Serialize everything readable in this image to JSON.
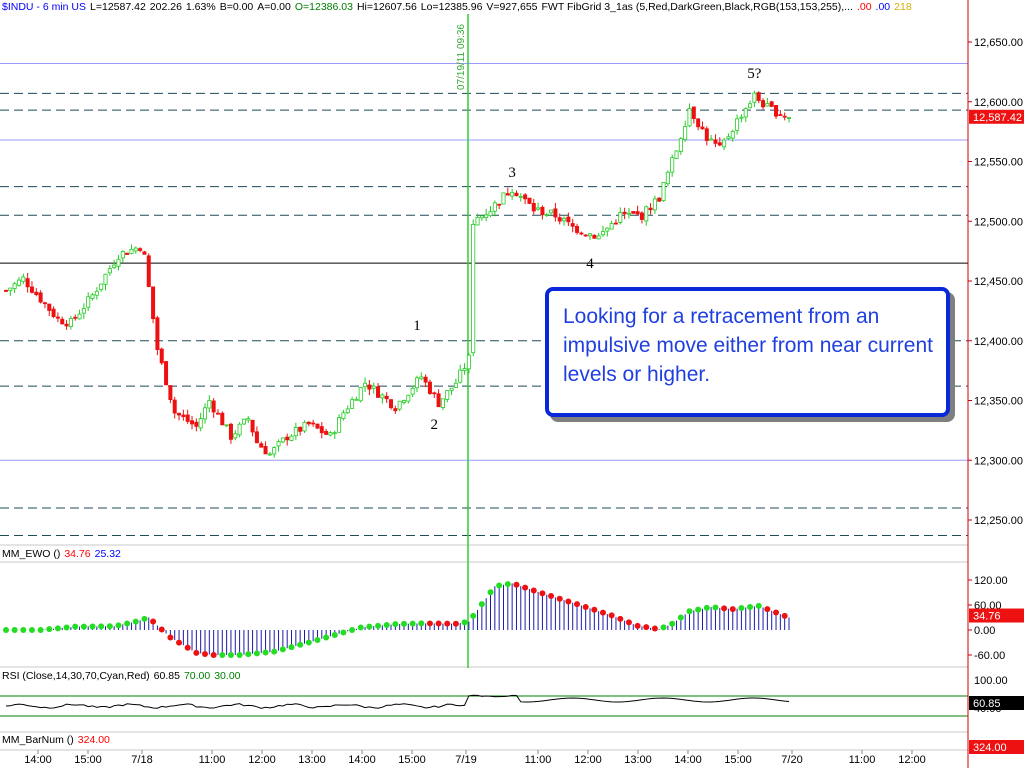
{
  "header": {
    "main": [
      {
        "text": "$INDU - 6 min  US",
        "color": "#0000ff"
      },
      {
        "text": "L=12587.42",
        "color": "#000000"
      },
      {
        "text": "202.26",
        "color": "#000000"
      },
      {
        "text": "1.63%",
        "color": "#000000"
      },
      {
        "text": "B=0.00",
        "color": "#000000"
      },
      {
        "text": "A=0.00",
        "color": "#000000"
      },
      {
        "text": "O=12386.03",
        "color": "#008000"
      },
      {
        "text": "Hi=12607.56",
        "color": "#000000"
      },
      {
        "text": "Lo=12385.96",
        "color": "#000000"
      },
      {
        "text": "V=927,655",
        "color": "#000000"
      },
      {
        "text": "FWT FibGrid 3_1as (5,Red,DarkGreen,Black,RGB(153,153,255),...",
        "color": "#000000"
      },
      {
        "text": ".00",
        "color": "#ff0000"
      },
      {
        "text": ".00",
        "color": "#0000ff"
      },
      {
        "text": "218",
        "color": "#d4b000"
      }
    ],
    "ewo": [
      {
        "text": "MM_EWO ()",
        "color": "#000000"
      },
      {
        "text": "34.76",
        "color": "#ff0000"
      },
      {
        "text": "25.32",
        "color": "#0000ff"
      }
    ],
    "rsi": [
      {
        "text": "RSI (Close,14,30,70,Cyan,Red)",
        "color": "#000000"
      },
      {
        "text": "60.85",
        "color": "#000000"
      },
      {
        "text": "70.00",
        "color": "#008000"
      },
      {
        "text": "30.00",
        "color": "#008000"
      }
    ],
    "bar": [
      {
        "text": "MM_BarNum ()",
        "color": "#000000"
      },
      {
        "text": "324.00",
        "color": "#ff0000"
      }
    ]
  },
  "callout": {
    "text": "Looking for a retracement from an impulsive move either from near current levels or higher."
  },
  "chart_data": {
    "type": "candlestick",
    "title": "$INDU - 6 min US",
    "price_axis": {
      "ticks": [
        "12,650.00",
        "12,600.00",
        "12,550.00",
        "12,500.00",
        "12,450.00",
        "12,400.00",
        "12,350.00",
        "12,300.00",
        "12,250.00"
      ],
      "tick_values": [
        12650,
        12600,
        12550,
        12500,
        12450,
        12400,
        12350,
        12300,
        12250
      ],
      "ylim": [
        12230,
        12665
      ],
      "last_price_label": "12,587.42",
      "last_price": 12587.42
    },
    "time_axis": {
      "labels": [
        "14:00",
        "15:00",
        "7/18",
        "11:00",
        "12:00",
        "13:00",
        "14:00",
        "15:00",
        "7/19",
        "11:00",
        "12:00",
        "13:00",
        "14:00",
        "15:00",
        "7/20",
        "11:00",
        "12:00"
      ]
    },
    "vertical_marker": {
      "label": "07/19/11 09:36",
      "color": "#33cc33"
    },
    "fib_levels": {
      "dashed": [
        12607,
        12593,
        12529,
        12505,
        12400,
        12362,
        12260,
        12237
      ],
      "blue_solid": [
        12632,
        12568,
        12300
      ],
      "black_solid": [
        12465
      ]
    },
    "wave_labels": [
      {
        "text": "1",
        "bar": 95,
        "price": 12409
      },
      {
        "text": "2",
        "bar": 99,
        "price": 12326
      },
      {
        "text": "3",
        "bar": 117,
        "price": 12537
      },
      {
        "text": "4",
        "bar": 135,
        "price": 12461
      },
      {
        "text": "5?",
        "bar": 173,
        "price": 12620
      }
    ],
    "price_path_knots": [
      [
        0,
        12442
      ],
      [
        4,
        12452
      ],
      [
        12,
        12418
      ],
      [
        15,
        12415
      ],
      [
        20,
        12438
      ],
      [
        26,
        12472
      ],
      [
        31,
        12479
      ],
      [
        32,
        12470
      ],
      [
        35,
        12393
      ],
      [
        39,
        12340
      ],
      [
        44,
        12328
      ],
      [
        47,
        12350
      ],
      [
        52,
        12320
      ],
      [
        56,
        12335
      ],
      [
        58,
        12315
      ],
      [
        61,
        12305
      ],
      [
        65,
        12320
      ],
      [
        70,
        12330
      ],
      [
        75,
        12320
      ],
      [
        78,
        12340
      ],
      [
        83,
        12365
      ],
      [
        90,
        12345
      ],
      [
        96,
        12370
      ],
      [
        100,
        12348
      ],
      [
        104,
        12365
      ],
      [
        107,
        12385
      ],
      [
        108,
        12500
      ],
      [
        112,
        12510
      ],
      [
        117,
        12528
      ],
      [
        122,
        12510
      ],
      [
        127,
        12505
      ],
      [
        131,
        12495
      ],
      [
        137,
        12487
      ],
      [
        142,
        12505
      ],
      [
        147,
        12505
      ],
      [
        151,
        12520
      ],
      [
        155,
        12560
      ],
      [
        158,
        12595
      ],
      [
        162,
        12570
      ],
      [
        165,
        12560
      ],
      [
        170,
        12590
      ],
      [
        173,
        12605
      ],
      [
        176,
        12595
      ],
      [
        181,
        12587
      ]
    ],
    "panels": {
      "ewo": {
        "ticks": [
          "120.00",
          "60.00",
          "0.00",
          "-60.00"
        ],
        "tick_values": [
          120,
          60,
          0,
          -60
        ],
        "last_value_label": "34.76",
        "last_value": 34.76,
        "knots": [
          [
            0,
            0
          ],
          [
            8,
            0
          ],
          [
            16,
            8
          ],
          [
            25,
            9
          ],
          [
            30,
            20
          ],
          [
            33,
            30
          ],
          [
            38,
            -18
          ],
          [
            44,
            -55
          ],
          [
            48,
            -60
          ],
          [
            54,
            -60
          ],
          [
            62,
            -52
          ],
          [
            70,
            -30
          ],
          [
            76,
            -12
          ],
          [
            82,
            6
          ],
          [
            90,
            14
          ],
          [
            96,
            16
          ],
          [
            104,
            15
          ],
          [
            107,
            20
          ],
          [
            110,
            62
          ],
          [
            113,
            105
          ],
          [
            117,
            112
          ],
          [
            124,
            88
          ],
          [
            132,
            62
          ],
          [
            140,
            35
          ],
          [
            146,
            10
          ],
          [
            151,
            2
          ],
          [
            154,
            15
          ],
          [
            158,
            45
          ],
          [
            163,
            55
          ],
          [
            168,
            50
          ],
          [
            174,
            58
          ],
          [
            181,
            30
          ]
        ]
      },
      "rsi": {
        "ticks": [
          "100.00",
          "60.85",
          "40.00"
        ],
        "levels": [
          30,
          70
        ],
        "last_value_label": "60.85",
        "last_value": 60.85
      },
      "barnum": {
        "last_value_label": "324.00",
        "last_value": 324
      }
    }
  }
}
